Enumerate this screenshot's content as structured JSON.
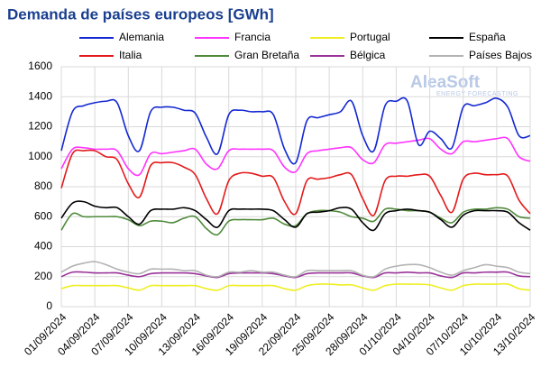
{
  "chart_data": {
    "type": "line",
    "title": "Demanda de países europeos [GWh]",
    "watermark": {
      "brand": "AleaSoft",
      "tagline": "ENERGY FORECASTING"
    },
    "categories": [
      "01/09/2024",
      null,
      null,
      "04/09/2024",
      null,
      null,
      "07/09/2024",
      null,
      null,
      "10/09/2024",
      null,
      null,
      "13/09/2024",
      null,
      null,
      "16/09/2024",
      null,
      null,
      "19/09/2024",
      null,
      null,
      "22/09/2024",
      null,
      null,
      "25/09/2024",
      null,
      null,
      "28/09/2024",
      null,
      null,
      "01/10/2024",
      null,
      null,
      "04/10/2024",
      null,
      null,
      "07/10/2024",
      null,
      null,
      "10/10/2024",
      null,
      null,
      "13/10/2024"
    ],
    "ylim": [
      0,
      1600
    ],
    "yticks": [
      0,
      200,
      400,
      600,
      800,
      1000,
      1200,
      1400,
      1600
    ],
    "grid": true,
    "series": [
      {
        "name": "Alemania",
        "color": "#1428d2",
        "values": [
          1040,
          1300,
          1340,
          1360,
          1370,
          1360,
          1140,
          1040,
          1300,
          1330,
          1330,
          1310,
          1290,
          1130,
          1020,
          1280,
          1310,
          1300,
          1300,
          1280,
          1050,
          960,
          1240,
          1260,
          1280,
          1300,
          1370,
          1140,
          1040,
          1340,
          1370,
          1370,
          1080,
          1170,
          1120,
          1060,
          1330,
          1340,
          1360,
          1390,
          1330,
          1140,
          1140
        ]
      },
      {
        "name": "Francia",
        "color": "#ff33ff",
        "values": [
          920,
          1050,
          1060,
          1050,
          1050,
          1040,
          920,
          880,
          1020,
          1020,
          1030,
          1040,
          1050,
          950,
          920,
          1040,
          1050,
          1050,
          1050,
          1040,
          930,
          900,
          1020,
          1040,
          1050,
          1060,
          1060,
          980,
          960,
          1080,
          1090,
          1100,
          1110,
          1120,
          1050,
          1020,
          1100,
          1100,
          1110,
          1120,
          1120,
          1000,
          970
        ]
      },
      {
        "name": "Portugal",
        "color": "#eeee22",
        "values": [
          120,
          140,
          140,
          140,
          140,
          140,
          125,
          110,
          140,
          140,
          140,
          140,
          140,
          120,
          110,
          140,
          140,
          140,
          140,
          140,
          120,
          110,
          140,
          150,
          150,
          145,
          145,
          125,
          110,
          140,
          150,
          150,
          150,
          145,
          125,
          110,
          140,
          150,
          150,
          150,
          150,
          120,
          110
        ]
      },
      {
        "name": "España",
        "color": "#000000",
        "values": [
          590,
          690,
          700,
          670,
          660,
          660,
          600,
          550,
          640,
          650,
          650,
          660,
          640,
          580,
          530,
          640,
          650,
          650,
          650,
          640,
          580,
          530,
          620,
          630,
          640,
          660,
          650,
          560,
          510,
          620,
          640,
          650,
          640,
          630,
          580,
          530,
          610,
          640,
          640,
          640,
          630,
          560,
          510
        ]
      },
      {
        "name": "Italia",
        "color": "#e31a1c",
        "values": [
          790,
          1020,
          1040,
          1040,
          1000,
          980,
          820,
          730,
          940,
          960,
          960,
          930,
          880,
          720,
          620,
          840,
          890,
          890,
          870,
          860,
          700,
          620,
          840,
          850,
          860,
          880,
          880,
          720,
          610,
          840,
          870,
          870,
          880,
          870,
          740,
          630,
          850,
          890,
          880,
          880,
          870,
          710,
          620
        ]
      },
      {
        "name": "Gran Bretaña",
        "color": "#4f8a3a",
        "values": [
          510,
          620,
          600,
          600,
          600,
          600,
          580,
          540,
          570,
          570,
          560,
          590,
          600,
          520,
          480,
          570,
          580,
          580,
          580,
          590,
          550,
          540,
          620,
          640,
          640,
          630,
          600,
          590,
          570,
          650,
          650,
          640,
          640,
          630,
          590,
          560,
          630,
          650,
          650,
          660,
          650,
          600,
          590
        ]
      },
      {
        "name": "Bélgica",
        "color": "#993399",
        "values": [
          200,
          230,
          230,
          225,
          225,
          225,
          210,
          200,
          220,
          225,
          225,
          225,
          220,
          205,
          195,
          220,
          225,
          225,
          225,
          220,
          205,
          195,
          220,
          225,
          225,
          225,
          225,
          205,
          195,
          225,
          225,
          230,
          225,
          225,
          205,
          195,
          225,
          225,
          230,
          230,
          230,
          205,
          200
        ]
      },
      {
        "name": "Países Bajos",
        "color": "#b3b3b3",
        "values": [
          230,
          270,
          290,
          300,
          280,
          250,
          230,
          220,
          250,
          250,
          250,
          240,
          240,
          210,
          200,
          230,
          230,
          240,
          230,
          230,
          210,
          200,
          240,
          240,
          240,
          240,
          240,
          210,
          200,
          250,
          270,
          280,
          280,
          260,
          230,
          210,
          240,
          260,
          280,
          270,
          260,
          230,
          220
        ]
      }
    ]
  }
}
